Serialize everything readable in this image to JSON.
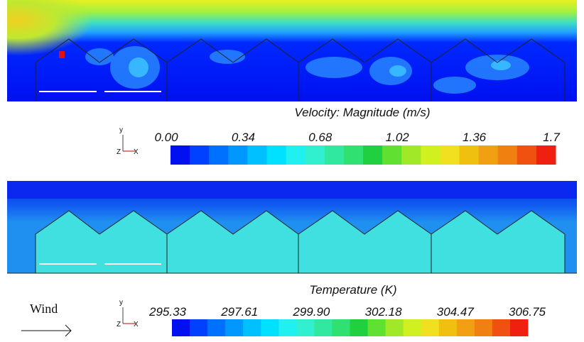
{
  "velocity_legend": {
    "title": "Velocity: Magnitude (m/s)",
    "ticks": [
      "0.00",
      "0.34",
      "0.68",
      "1.02",
      "1.36",
      "1.7"
    ]
  },
  "temperature_legend": {
    "title": "Temperature (K)",
    "ticks": [
      "295.33",
      "297.61",
      "299.90",
      "302.18",
      "304.47",
      "306.75"
    ]
  },
  "triad": {
    "y": "y",
    "z": "Z",
    "x": "X"
  },
  "wind_label": "Wind"
}
